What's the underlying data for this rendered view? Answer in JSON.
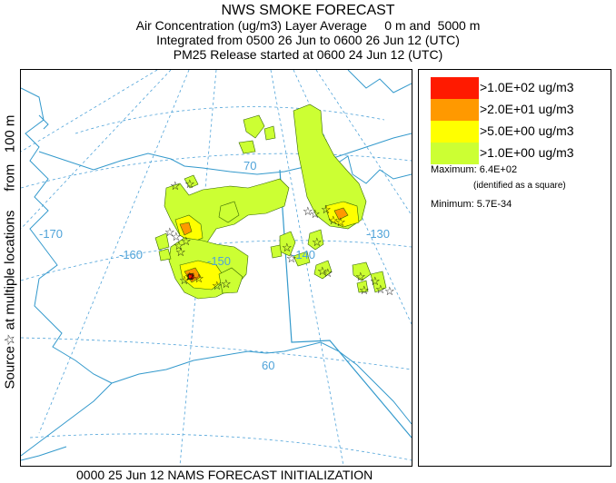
{
  "header": {
    "title": "NWS SMOKE FORECAST",
    "line2": "Air Concentration (ug/m3) Layer Average     0 m and  5000 m",
    "line3": "Integrated from 0500 26 Jun to 0600 26 Jun 12 (UTC)",
    "line4": "PM25 Release started at 0600 24 Jun 12 (UTC)"
  },
  "side_label": {
    "part1": "Source",
    "star_icon": "star-icon",
    "part2": " at multiple locations     from   100 m"
  },
  "legend": {
    "items": [
      {
        "label": ">1.0E+02 ug/m3",
        "color": "#ff1a00"
      },
      {
        "label": ">2.0E+01 ug/m3",
        "color": "#ff9900"
      },
      {
        "label": ">5.0E+00 ug/m3",
        "color": "#ffff00"
      },
      {
        "label": ">1.0E+00 ug/m3",
        "color": "#ccff33"
      }
    ],
    "maximum": "Maximum: 6.4E+02",
    "maximum_note": "(identified as a square)",
    "minimum": "Minimum: 5.7E-34"
  },
  "map": {
    "longitude_labels": [
      "-170",
      "-160",
      "-150",
      "-140",
      "-130"
    ],
    "latitude_labels": [
      "70",
      "60"
    ],
    "graticule_color": "#4fa3d9",
    "coast_color": "#3399cc",
    "plume_outline_color": "#336600",
    "source_marker_icon": "star-icon"
  },
  "footer": "0000 25 Jun 12 NAMS FORECAST INITIALIZATION"
}
